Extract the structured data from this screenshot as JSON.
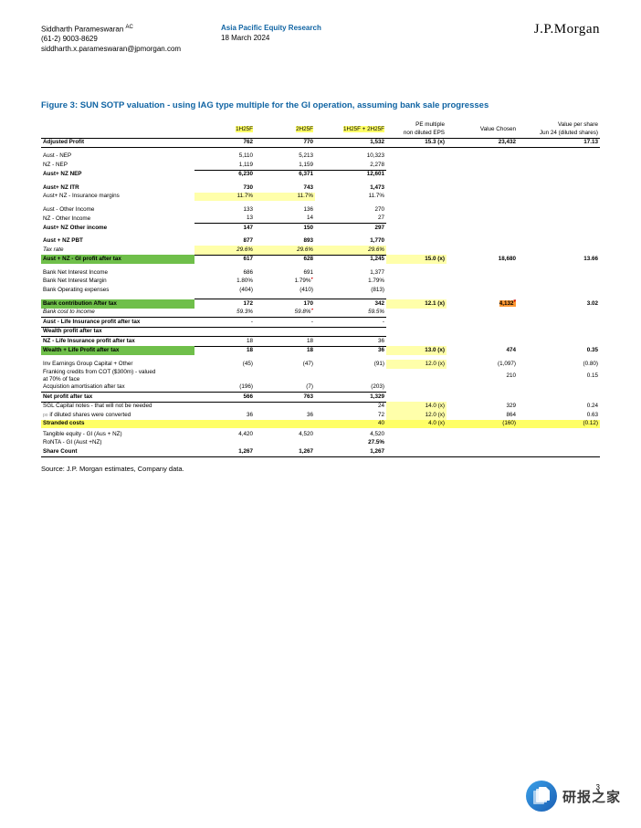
{
  "header": {
    "analyst_name": "Siddharth Parameswaran",
    "ac_superscript": "AC",
    "phone": "(61-2) 9003-8629",
    "email": "siddharth.x.parameswaran@jpmorgan.com",
    "research_line": "Asia Pacific Equity Research",
    "date": "18 March 2024",
    "logo": "J.P.Morgan"
  },
  "figure_title": "Figure 3: SUN SOTP valuation - using IAG type multiple for the GI operation, assuming bank sale progresses",
  "columns": {
    "c1": "1H25F",
    "c2": "2H25F",
    "c3": "1H25F + 2H25F",
    "c4": "PE multiple\nnon diluted EPS",
    "c5": "Value Chosen",
    "c6": "Value per share\nJun 24 (diluted shares)"
  },
  "rows": {
    "adjusted_profit": {
      "label": "Adjusted Profit",
      "c1": "762",
      "c2": "770",
      "c3": "1,532",
      "c4": "15.3 (x)",
      "c5": "23,432",
      "c6": "17.13"
    },
    "aust_nep": {
      "label": "Aust - NEP",
      "c1": "5,110",
      "c2": "5,213",
      "c3": "10,323"
    },
    "nz_nep": {
      "label": "NZ - NEP",
      "c1": "1,119",
      "c2": "1,159",
      "c3": "2,278"
    },
    "aust_nz_nep": {
      "label": "Aust+ NZ NEP",
      "c1": "6,230",
      "c2": "6,371",
      "c3": "12,601"
    },
    "aust_nz_itr": {
      "label": "Aust+ NZ ITR",
      "c1": "730",
      "c2": "743",
      "c3": "1,473"
    },
    "aust_nz_ins_marg": {
      "label": "Aust+ NZ - Insurance margins",
      "c1": "11.7%",
      "c2": "11.7%",
      "c3": "11.7%"
    },
    "aust_other_inc": {
      "label": "Aust - Other Income",
      "c1": "133",
      "c2": "136",
      "c3": "270"
    },
    "nz_other_inc": {
      "label": "NZ - Other Income",
      "c1": "13",
      "c2": "14",
      "c3": "27"
    },
    "aust_nz_other_inc": {
      "label": "Aust+ NZ Other income",
      "c1": "147",
      "c2": "150",
      "c3": "297"
    },
    "aust_nz_pbt": {
      "label": "Aust + NZ PBT",
      "c1": "877",
      "c2": "893",
      "c3": "1,770"
    },
    "tax_rate": {
      "label": "Tax rate",
      "c1": "29.6%",
      "c2": "29.6%",
      "c3": "29.6%"
    },
    "gi_profit_after_tax": {
      "label": "Aust + NZ - GI profit after tax",
      "c1": "617",
      "c2": "628",
      "c3": "1,245",
      "c4": "15.0 (x)",
      "c5": "18,680",
      "c6": "13.66"
    },
    "bank_nii": {
      "label": "Bank Net Interest Income",
      "c1": "686",
      "c2": "691",
      "c3": "1,377"
    },
    "bank_nim": {
      "label": "Bank Net Interest Margin",
      "c1": "1.80%",
      "c2": "1.79%",
      "c3": "1.79%"
    },
    "bank_opex": {
      "label": "Bank Operating expenses",
      "c1": "(404)",
      "c2": "(410)",
      "c3": "(813)"
    },
    "bank_contrib": {
      "label": "Bank contribution After tax",
      "c1": "172",
      "c2": "170",
      "c3": "342",
      "c4": "12.1 (x)",
      "c5": "4,132",
      "c6": "3.02"
    },
    "bank_cost_inc": {
      "label": "Bank cost to income",
      "c1": "59.3%",
      "c2": "59.8%",
      "c3": "59.5%"
    },
    "aust_life": {
      "label": "Aust - Life Insurance profit after tax",
      "c1": "-",
      "c2": "-",
      "c3": "-"
    },
    "wealth_prof": {
      "label": "Wealth profit after tax",
      "c1": "",
      "c2": "",
      "c3": ""
    },
    "nz_life": {
      "label": "NZ - Life Insurance profit after tax",
      "c1": "18",
      "c2": "18",
      "c3": "36"
    },
    "wealth_life": {
      "label": "Wealth + Life Profit after tax",
      "c1": "18",
      "c2": "18",
      "c3": "36",
      "c4": "13.0 (x)",
      "c5": "474",
      "c6": "0.35"
    },
    "inv_earn": {
      "label": "Inv Earnings Group Capital + Other",
      "c1": "(45)",
      "c2": "(47)",
      "c3": "(91)",
      "c4": "12.0 (x)",
      "c5": "(1,097)",
      "c6": "(0.80)"
    },
    "franking": {
      "label": "Franking credits from COT ($300m) - valued at 70% of face",
      "c5": "210",
      "c6": "0.15"
    },
    "acq_amort": {
      "label": "Acquistion amortisation after tax",
      "c1": "(196)",
      "c2": "(7)",
      "c3": "(203)"
    },
    "net_profit": {
      "label": "Net profit after tax",
      "c1": "566",
      "c2": "763",
      "c3": "1,329"
    },
    "sgl_notes": {
      "label": "SGL Capital notes - that will not be needed",
      "c3": "24",
      "c4": "14.0 (x)",
      "c5": "329",
      "c6": "0.24"
    },
    "if_diluted": {
      "label": "if diluted shares were converted",
      "c1": "36",
      "c2": "36",
      "c3": "72",
      "c4": "12.0 (x)",
      "c5": "864",
      "c6": "0.63"
    },
    "stranded": {
      "label": "Stranded costs",
      "c3": "40",
      "c4": "4.0 (x)",
      "c5": "(160)",
      "c6": "(0.12)"
    },
    "tangible_eq": {
      "label": "Tangible equity - GI (Aus + NZ)",
      "c1": "4,420",
      "c2": "4,520",
      "c3": "4,520"
    },
    "ronta": {
      "label": "RoNTA - GI (Aust +NZ)",
      "c3": "27.5%"
    },
    "share_count": {
      "label": "Share Count",
      "c1": "1,267",
      "c2": "1,267",
      "c3": "1,267"
    }
  },
  "source": "Source: J.P. Morgan estimates, Company data.",
  "page_number": "3",
  "watermark_text": "研报之家"
}
